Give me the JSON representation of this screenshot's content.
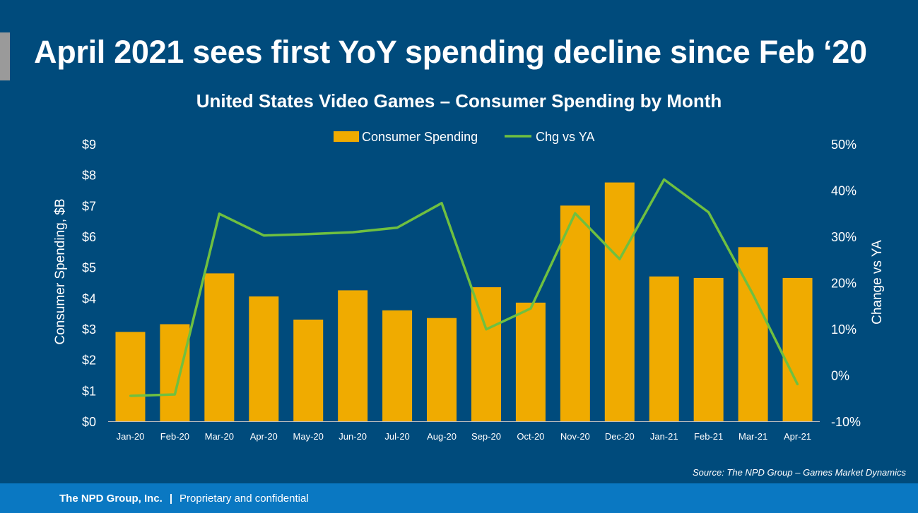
{
  "slide": {
    "headline": "April 2021 sees first YoY spending decline since Feb ‘20",
    "source": "Source: The NPD Group – Games Market Dynamics",
    "footer": {
      "company": "The NPD Group, Inc.",
      "separator": "|",
      "note": "Proprietary and confidential"
    }
  },
  "colors": {
    "background": "#004b7c",
    "bar": "#f0ab00",
    "line": "#6fc040",
    "footer": "#0a78c2",
    "accent": "#9a9a9a"
  },
  "chart_data": {
    "type": "bar",
    "title": "United States Video Games – Consumer Spending by Month",
    "categories": [
      "Jan-20",
      "Feb-20",
      "Mar-20",
      "Apr-20",
      "May-20",
      "Jun-20",
      "Jul-20",
      "Aug-20",
      "Sep-20",
      "Oct-20",
      "Nov-20",
      "Dec-20",
      "Jan-21",
      "Feb-21",
      "Mar-21",
      "Apr-21"
    ],
    "series": [
      {
        "name": "Consumer Spending",
        "type": "bar",
        "axis": "left",
        "values": [
          2.9,
          3.15,
          4.8,
          4.05,
          3.3,
          4.25,
          3.6,
          3.35,
          4.35,
          3.85,
          7.0,
          7.75,
          4.7,
          4.65,
          5.65,
          4.65
        ]
      },
      {
        "name": "Chg vs YA",
        "type": "line",
        "axis": "right",
        "values": [
          -4.5,
          -4.2,
          34.9,
          30.2,
          30.5,
          30.9,
          31.9,
          37.2,
          9.9,
          14.4,
          35.0,
          25.1,
          42.3,
          35.2,
          17.4,
          -2.0
        ]
      }
    ],
    "y_left": {
      "label": "Consumer Spending, $B",
      "min": 0,
      "max": 9,
      "step": 1,
      "ticks": [
        "$0",
        "$1",
        "$2",
        "$3",
        "$4",
        "$5",
        "$6",
        "$7",
        "$8",
        "$9"
      ]
    },
    "y_right": {
      "label": "Change vs YA",
      "min": -10,
      "max": 50,
      "step": 10,
      "ticks": [
        "-10%",
        "0%",
        "10%",
        "20%",
        "30%",
        "40%",
        "50%"
      ]
    },
    "grid": false,
    "legend": "top-center"
  }
}
